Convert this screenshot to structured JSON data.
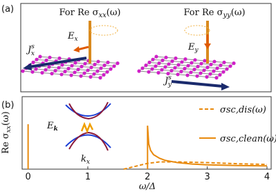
{
  "panel_a": {
    "label": "(a)",
    "left": {
      "title": {
        "pre": "For Re σ",
        "sub": "xx",
        "post": "(ω)"
      },
      "field": {
        "base": "E",
        "sub": "x"
      },
      "current": {
        "base": "J",
        "sup": "s",
        "sub": "x"
      }
    },
    "right": {
      "title": {
        "pre": "For Re σ",
        "sub": "yy",
        "post": "(ω)"
      },
      "field": {
        "base": "E",
        "sub": "y"
      },
      "current": {
        "base": "J",
        "sup": "s",
        "sub": "y"
      }
    }
  },
  "chart_data": {
    "type": "line",
    "panel_label": "(b)",
    "x_label": "ω/Δ",
    "y_label": {
      "pre": "Re σ",
      "sub": "xx",
      "post": "(ω)"
    },
    "xlim": [
      -0.1,
      4.07
    ],
    "xticks": [
      0,
      1,
      2,
      3,
      4
    ],
    "ylim": [
      0,
      1
    ],
    "inset": {
      "y_label": {
        "base": "E",
        "sub": "k"
      },
      "x_label": {
        "base": "k",
        "sub": "x"
      }
    },
    "series": [
      {
        "name": "σsc,dis(ω)",
        "color": "#e8890c",
        "dash": true,
        "x": [
          1.6,
          1.8,
          2,
          2.2,
          2.5,
          3,
          3.5,
          4
        ],
        "values": [
          0,
          0.04,
          0.08,
          0.1,
          0.1,
          0.09,
          0.075,
          0.065
        ]
      },
      {
        "name": "σsc,clean(ω)",
        "color": "#e8890c",
        "dash": false,
        "x": [
          0,
          0,
          0.02,
          2,
          2,
          2.02,
          2.05,
          2.1,
          2.2,
          2.3,
          2.5,
          2.75,
          3,
          3.5,
          4
        ],
        "values": [
          0,
          0.62,
          null,
          0,
          0.6,
          0.35,
          0.26,
          0.2,
          0.15,
          0.12,
          0.09,
          0.07,
          0.06,
          0.05,
          0.045
        ]
      }
    ]
  }
}
